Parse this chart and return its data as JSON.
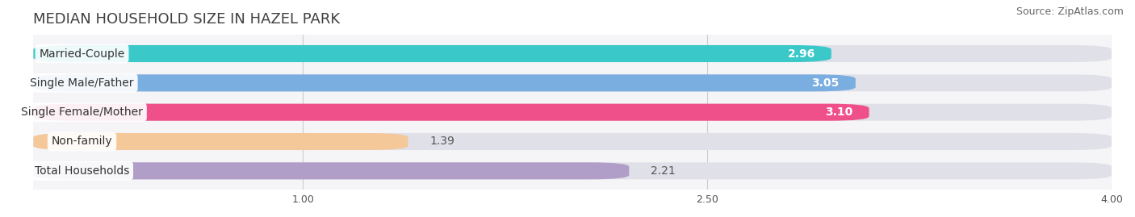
{
  "title": "MEDIAN HOUSEHOLD SIZE IN HAZEL PARK",
  "source": "Source: ZipAtlas.com",
  "categories": [
    "Married-Couple",
    "Single Male/Father",
    "Single Female/Mother",
    "Non-family",
    "Total Households"
  ],
  "values": [
    2.96,
    3.05,
    3.1,
    1.39,
    2.21
  ],
  "value_labels": [
    "2.96",
    "3.05",
    "3.10",
    "1.39",
    "2.21"
  ],
  "bar_colors": [
    "#3ac8c8",
    "#7baee0",
    "#f0508a",
    "#f5c89a",
    "#b09ec8"
  ],
  "bar_bg_color": "#e0e0e8",
  "xlim": [
    0,
    4.0
  ],
  "xstart": 0.0,
  "xticks": [
    1.0,
    2.5,
    4.0
  ],
  "title_fontsize": 13,
  "source_fontsize": 9,
  "label_fontsize": 10,
  "value_fontsize": 10,
  "bar_height": 0.58,
  "background_color": "#ffffff",
  "plot_bg_color": "#f5f5f8"
}
